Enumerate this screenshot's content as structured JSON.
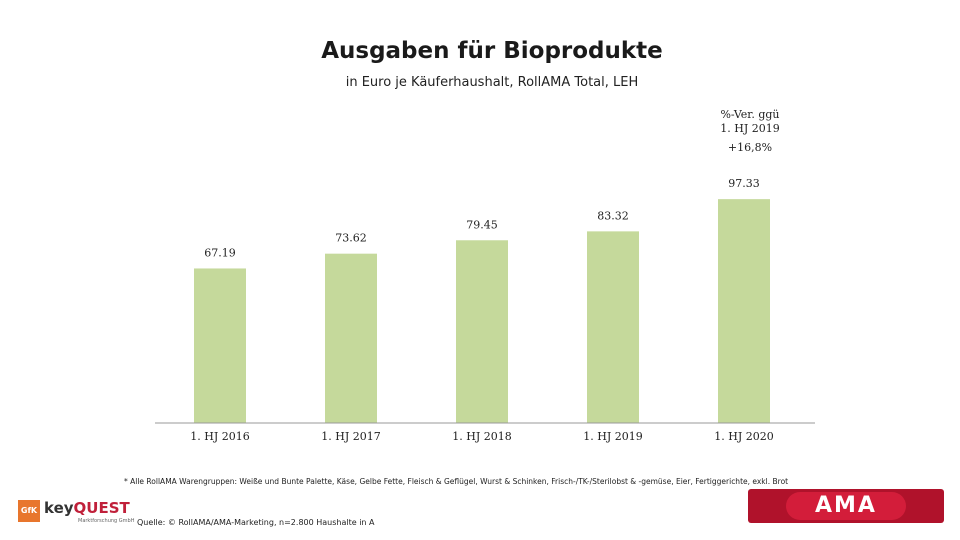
{
  "title": "Ausgaben für Bioprodukte",
  "subtitle": "in Euro je Käuferhaushalt, RollAMA Total, LEH",
  "change_note": {
    "header_line1": "%-Ver. ggü",
    "header_line2": "1. HJ 2019",
    "value": "+16,8%"
  },
  "footnote": "* Alle RollAMA Warengruppen: Weiße und Bunte Palette, Käse, Gelbe Fette, Fleisch & Geflügel, Wurst & Schinken, Frisch-/TK-/Sterilobst & -gemüse, Eier, Fertiggerichte, exkl. Brot",
  "source": "Quelle: © RollAMA/AMA-Marketing, n=2.800 Haushalte in A",
  "logos": {
    "gfk": "GfK",
    "keyquest_key": "key",
    "keyquest_quest": "QUEST",
    "keyquest_sub": "Marktforschung GmbH",
    "ama": "AMA"
  },
  "colors": {
    "bar": "#c5d99b",
    "axis": "#999999"
  },
  "chart_data": {
    "type": "bar",
    "categories": [
      "1. HJ 2016",
      "1. HJ 2017",
      "1. HJ 2018",
      "1. HJ 2019",
      "1. HJ 2020"
    ],
    "values": [
      67.19,
      73.62,
      79.45,
      83.32,
      97.33
    ],
    "value_labels": [
      "67.19",
      "73.62",
      "79.45",
      "83.32",
      "97.33"
    ],
    "title": "Ausgaben für Bioprodukte",
    "xlabel": "",
    "ylabel": "",
    "ylim": [
      0,
      100
    ],
    "grid": false,
    "legend": "none"
  }
}
